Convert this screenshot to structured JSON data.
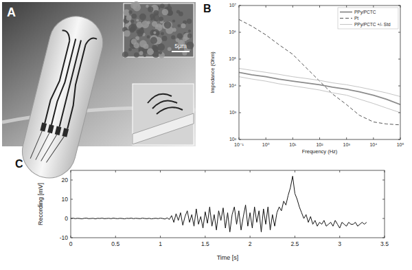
{
  "photo": {
    "title": "A",
    "scale_bar": "5μm"
  },
  "chart_data": [
    {
      "type": "line",
      "title": "B",
      "log": true,
      "grid": false,
      "legend": "upper right",
      "x_label": "Frequency (Hz)",
      "y_label": "Impedance (Ohm)",
      "x": [
        0.1,
        0.3,
        1,
        3,
        10,
        30,
        100,
        300,
        1000,
        3000,
        10000,
        30000,
        100000
      ],
      "xlim": [
        0.1,
        100000
      ],
      "xticks": [
        {
          "value": 0.1,
          "label": "10⁻¹"
        },
        {
          "value": 1,
          "label": "10⁰"
        },
        {
          "value": 10,
          "label": "10¹"
        },
        {
          "value": 100,
          "label": "10²"
        },
        {
          "value": 1000,
          "label": "10³"
        },
        {
          "value": 10000,
          "label": "10⁴"
        },
        {
          "value": 100000,
          "label": "10⁵"
        }
      ],
      "ylim": [
        100,
        10000000
      ],
      "yticks": [
        {
          "value": 100,
          "label": "10²"
        },
        {
          "value": 1000,
          "label": "10³"
        },
        {
          "value": 10000,
          "label": "10⁴"
        },
        {
          "value": 100000,
          "label": "10⁵"
        },
        {
          "value": 1000000,
          "label": "10⁶"
        },
        {
          "value": 10000000,
          "label": "10⁷"
        }
      ],
      "series": [
        {
          "name": "PPy/PCTC",
          "color": "#8c8c8c",
          "line_style": "solid",
          "values": [
            32000,
            26000,
            22000,
            18000,
            15000,
            13000,
            11000,
            9000,
            7500,
            6000,
            4500,
            3200,
            2000
          ]
        },
        {
          "name": "Pt",
          "color": "#555555",
          "line_style": "dashed",
          "values": [
            3000000,
            1700000,
            800000,
            350000,
            150000,
            50000,
            15000,
            5000,
            2000,
            800,
            450,
            380,
            350
          ]
        },
        {
          "name": "PPy/PCTC +/- Std",
          "color": "#c4c4c4",
          "line_style": "solid",
          "upper": [
            45000,
            38000,
            32000,
            27000,
            22000,
            19000,
            16000,
            13000,
            11000,
            9000,
            7000,
            5500,
            4000
          ],
          "lower": [
            22000,
            18000,
            15000,
            12000,
            10000,
            8500,
            7000,
            5500,
            4500,
            3200,
            2200,
            1500,
            1000
          ]
        }
      ]
    },
    {
      "type": "line",
      "title": "C",
      "grid": false,
      "color": "#111111",
      "line_style": "solid",
      "x_label": "Time [s]",
      "y_label": "Recording [mV]",
      "xlim": [
        0,
        3.5
      ],
      "xticks": [
        0,
        0.5,
        1,
        1.5,
        2,
        2.5,
        3,
        3.5
      ],
      "ylim": [
        -10,
        25
      ],
      "yticks": [
        -10,
        0,
        10,
        20
      ],
      "x": [
        0,
        0.025,
        0.05,
        0.075,
        0.1,
        0.125,
        0.15,
        0.175,
        0.2,
        0.225,
        0.25,
        0.275,
        0.3,
        0.325,
        0.35,
        0.375,
        0.4,
        0.425,
        0.45,
        0.475,
        0.5,
        0.525,
        0.55,
        0.575,
        0.6,
        0.625,
        0.65,
        0.675,
        0.7,
        0.725,
        0.75,
        0.775,
        0.8,
        0.825,
        0.85,
        0.875,
        0.9,
        0.925,
        0.95,
        0.975,
        1,
        1.025,
        1.05,
        1.075,
        1.1,
        1.125,
        1.15,
        1.175,
        1.2,
        1.225,
        1.25,
        1.275,
        1.3,
        1.325,
        1.35,
        1.375,
        1.4,
        1.425,
        1.45,
        1.475,
        1.5,
        1.525,
        1.55,
        1.575,
        1.6,
        1.625,
        1.65,
        1.675,
        1.7,
        1.725,
        1.75,
        1.775,
        1.8,
        1.825,
        1.85,
        1.875,
        1.9,
        1.925,
        1.95,
        1.975,
        2,
        2.025,
        2.05,
        2.075,
        2.1,
        2.125,
        2.15,
        2.175,
        2.2,
        2.225,
        2.25,
        2.275,
        2.3,
        2.325,
        2.35,
        2.375,
        2.4,
        2.425,
        2.45,
        2.475,
        2.5,
        2.525,
        2.55,
        2.575,
        2.6,
        2.625,
        2.65,
        2.675,
        2.7,
        2.725,
        2.75,
        2.775,
        2.8,
        2.825,
        2.85,
        2.875,
        2.9,
        2.925,
        2.95,
        2.975,
        3,
        3.025,
        3.05,
        3.075,
        3.1,
        3.125,
        3.15,
        3.175,
        3.2,
        3.225,
        3.25,
        3.275,
        3.3
      ],
      "values": [
        0,
        0.2,
        -0.1,
        0.1,
        0,
        -0.2,
        0.1,
        0.2,
        -0.1,
        0,
        0.1,
        -0.2,
        0.1,
        0,
        0.2,
        -0.1,
        0,
        0.1,
        -0.1,
        0.2,
        0,
        -0.1,
        0.1,
        0,
        -0.2,
        0.1,
        0,
        0.2,
        -0.1,
        0.1,
        0,
        -0.1,
        0.2,
        0,
        -0.1,
        0.1,
        -0.2,
        0,
        0.1,
        -0.1,
        0.2,
        0,
        -0.3,
        0.3,
        -0.5,
        1.5,
        -2,
        2.5,
        -1,
        3,
        -3.5,
        1,
        4,
        -2,
        2,
        -4,
        5,
        -3,
        1,
        -5,
        3.5,
        -2.5,
        6,
        -4,
        2,
        -6,
        4,
        -1,
        5.5,
        -5,
        3,
        -7,
        2,
        6,
        -3,
        4,
        -6,
        1,
        7,
        -4,
        3,
        -5,
        6,
        -2,
        4,
        -7,
        5,
        -3,
        6,
        -6,
        2,
        -4,
        3,
        6,
        4,
        9,
        7,
        12,
        16,
        22,
        13,
        10,
        6,
        3,
        0,
        2,
        -2,
        1,
        -3,
        -1,
        -4,
        -2,
        -3,
        -1,
        -4,
        -3,
        -2,
        -4,
        -1,
        -3,
        -5,
        -2,
        -3,
        -4,
        -2,
        -3,
        -3,
        -2,
        -4,
        -3,
        -2,
        -3,
        -2
      ]
    }
  ]
}
